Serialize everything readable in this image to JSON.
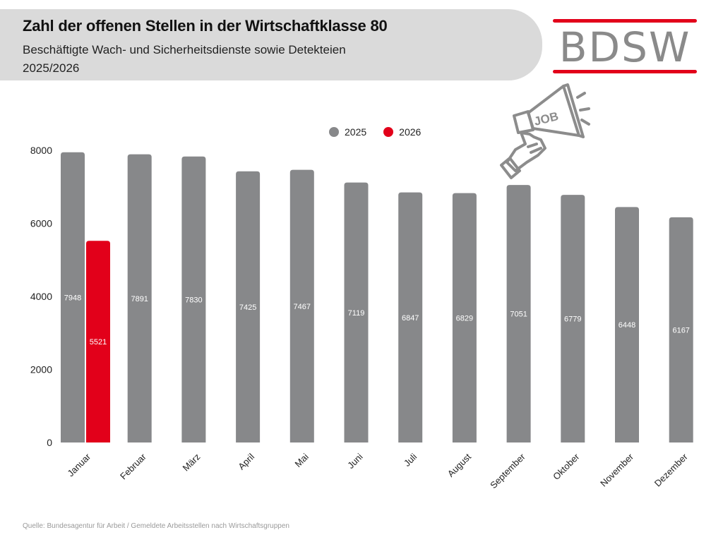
{
  "header": {
    "title": "Zahl der offenen Stellen in der Wirtschaftklasse 80",
    "subtitle_line1": "Beschäftigte Wach- und Sicherheitsdienste sowie Detekteien",
    "subtitle_line2": "2025/2026"
  },
  "logo": {
    "text": "BDSW",
    "text_color": "#8a8a8a",
    "line_color": "#e2001a"
  },
  "illustration": {
    "icon": "megaphone-hand-icon",
    "label": "JOB",
    "color": "#8c8c8c"
  },
  "legend": [
    {
      "label": "2025",
      "color": "#87888a"
    },
    {
      "label": "2026",
      "color": "#e2001a"
    }
  ],
  "source": "Quelle: Bundesagentur für Arbeit / Gemeldete Arbeitsstellen nach Wirtschaftsgruppen",
  "chart_data": {
    "type": "bar",
    "title": "Zahl der offenen Stellen in der Wirtschaftklasse 80",
    "xlabel": "",
    "ylabel": "",
    "ylim": [
      0,
      8000
    ],
    "yticks": [
      0,
      2000,
      4000,
      6000,
      8000
    ],
    "grid": false,
    "legend_position": "top",
    "categories": [
      "Januar",
      "Februar",
      "März",
      "April",
      "Mai",
      "Juni",
      "Juli",
      "August",
      "September",
      "Oktober",
      "November",
      "Dezember"
    ],
    "series": [
      {
        "name": "2025",
        "color": "#87888a",
        "values": [
          7948,
          7891,
          7830,
          7425,
          7467,
          7119,
          6847,
          6829,
          7051,
          6779,
          6448,
          6167
        ]
      },
      {
        "name": "2026",
        "color": "#e2001a",
        "values": [
          5521,
          null,
          null,
          null,
          null,
          null,
          null,
          null,
          null,
          null,
          null,
          null
        ]
      }
    ]
  }
}
